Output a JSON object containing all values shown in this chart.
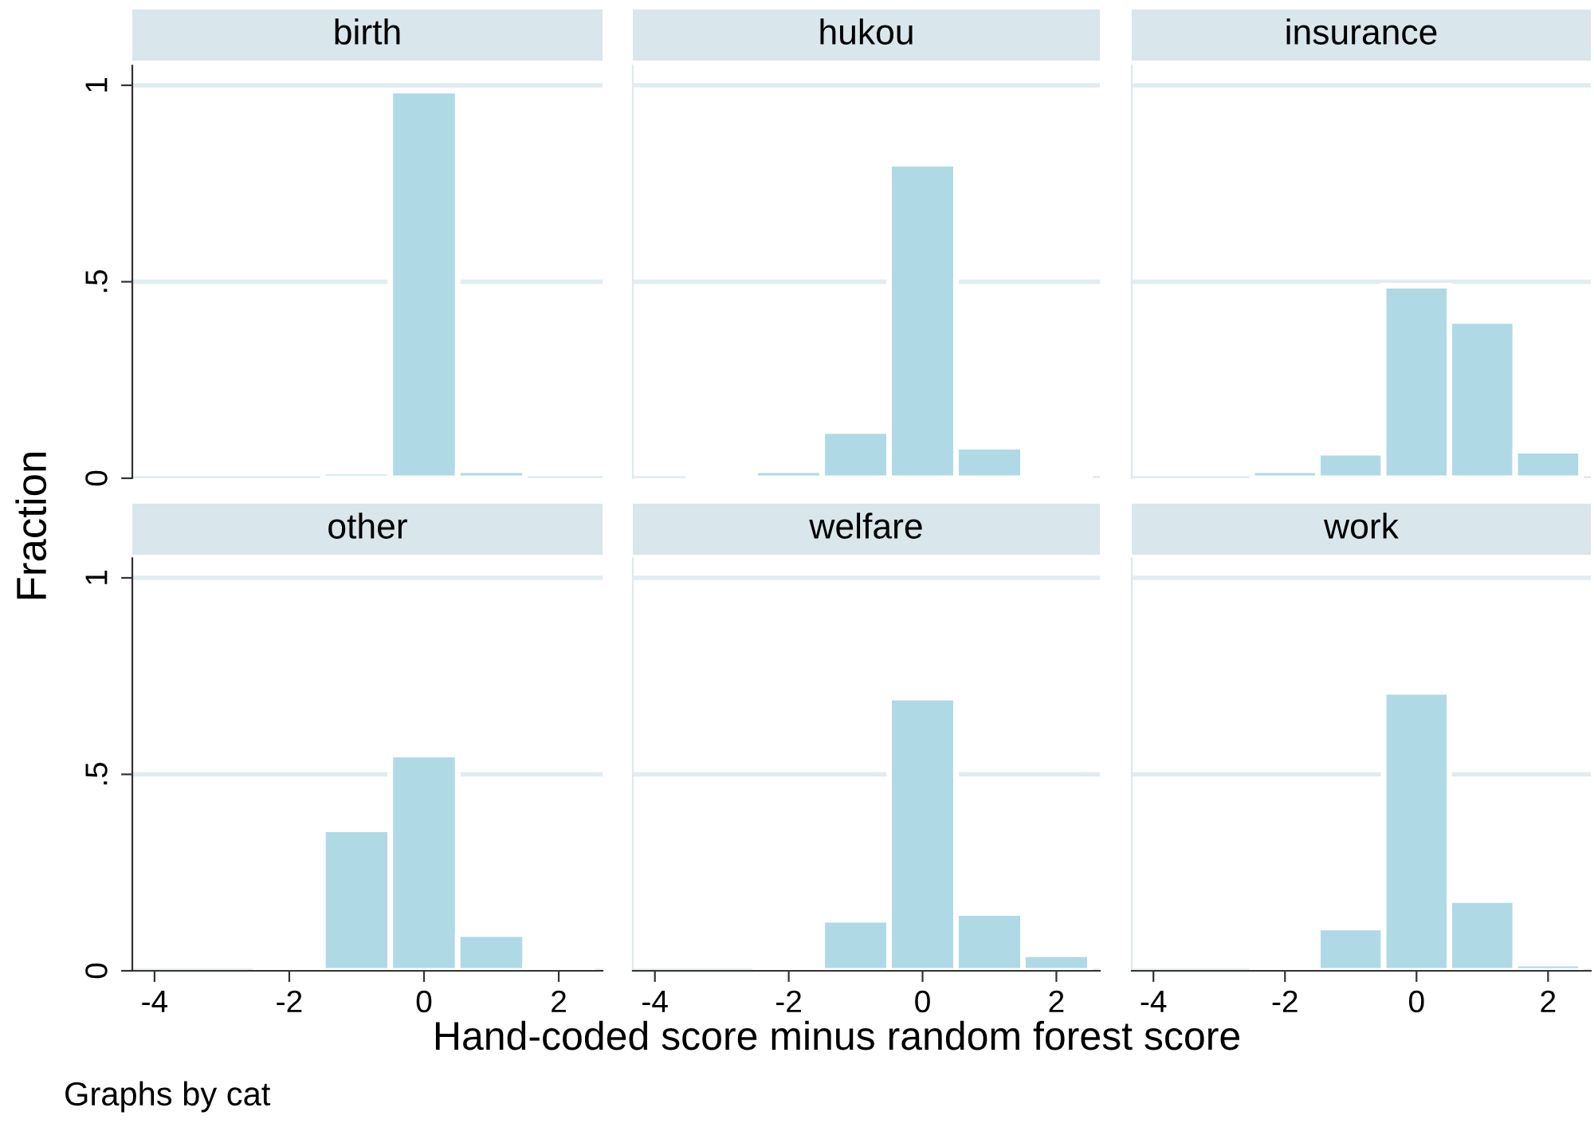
{
  "chart_data": [
    {
      "type": "histogram",
      "title": "birth",
      "ylabel": "Fraction",
      "bins": [
        -1.5,
        -0.5,
        0.5,
        1.5
      ],
      "values": [
        0.016,
        0.986,
        0.02
      ],
      "color": "#b0d9e6",
      "xlim": [
        -4.33,
        2.65
      ],
      "ylim": [
        0,
        1.05
      ],
      "xticks": [
        -4,
        -2,
        0,
        2
      ],
      "yticks": [
        0,
        {
          "value": 0.5,
          "label": ".5"
        },
        1
      ],
      "grid": "y",
      "tick_labels": "y"
    },
    {
      "type": "histogram",
      "title": "hukou",
      "bins": [
        -3.5,
        -2.5,
        -1.5,
        -0.5,
        0.5,
        1.5,
        2.5
      ],
      "values": [
        0.01,
        0.02,
        0.12,
        0.8,
        0.08,
        0.01
      ],
      "color": "#b0d9e6",
      "xlim": [
        -4.33,
        2.65
      ],
      "ylim": [
        0,
        1.05
      ],
      "xticks": [
        -4,
        -2,
        0,
        2
      ],
      "yticks": [
        0,
        0.5,
        1
      ],
      "grid": "y",
      "tick_labels": false
    },
    {
      "type": "histogram",
      "title": "insurance",
      "bins": [
        -2.5,
        -1.5,
        -0.5,
        0.5,
        1.5,
        2.5
      ],
      "values": [
        0.02,
        0.065,
        0.49,
        0.4,
        0.07
      ],
      "color": "#b0d9e6",
      "xlim": [
        -4.33,
        2.65
      ],
      "ylim": [
        0,
        1.05
      ],
      "xticks": [
        -4,
        -2,
        0,
        2
      ],
      "yticks": [
        0,
        0.5,
        1
      ],
      "grid": "y",
      "tick_labels": false
    },
    {
      "type": "histogram",
      "title": "other",
      "annotations": [
        "Graphs by cat"
      ],
      "bins": [
        -2.5,
        -1.5,
        -0.5,
        0.5,
        1.5,
        2.5
      ],
      "values": [
        0.009,
        0.36,
        0.55,
        0.093,
        0.012
      ],
      "color": "#b0d9e6",
      "xlim": [
        -4.33,
        2.65
      ],
      "ylim": [
        0,
        1.05
      ],
      "xticks": [
        -4,
        -2,
        0,
        2
      ],
      "yticks": [
        0,
        {
          "value": 0.5,
          "label": ".5"
        },
        1
      ],
      "grid": "y"
    },
    {
      "type": "histogram",
      "title": "welfare",
      "xlabel": "Hand-coded score minus random forest score",
      "bins": [
        -2.5,
        -1.5,
        -0.5,
        0.5,
        1.5,
        2.5
      ],
      "values": [
        0.014,
        0.13,
        0.695,
        0.147,
        0.042
      ],
      "color": "#b0d9e6",
      "xlim": [
        -4.33,
        2.65
      ],
      "ylim": [
        0,
        1.05
      ],
      "xticks": [
        -4,
        -2,
        0,
        2
      ],
      "yticks": [
        0,
        0.5,
        1
      ],
      "grid": "y",
      "tick_labels": "x"
    },
    {
      "type": "histogram",
      "title": "work",
      "bins": [
        -2.5,
        -1.5,
        -0.5,
        0.5,
        1.5,
        2.5
      ],
      "values": [
        0.008,
        0.11,
        0.71,
        0.18,
        0.018
      ],
      "color": "#b0d9e6",
      "xlim": [
        -4.33,
        2.65
      ],
      "ylim": [
        0,
        1.05
      ],
      "xticks": [
        -4,
        -2,
        0,
        2
      ],
      "yticks": [
        0,
        0.5,
        1
      ],
      "grid": "y",
      "tick_labels": "x"
    }
  ]
}
